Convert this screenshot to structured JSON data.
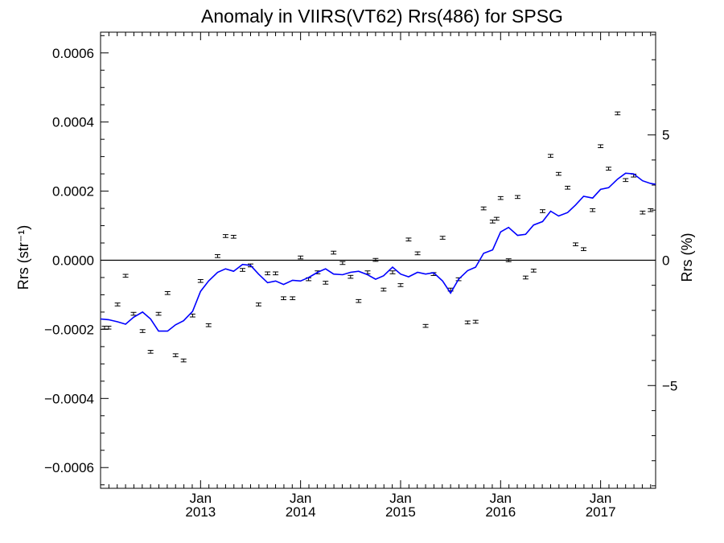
{
  "chart_data": {
    "type": "scatter",
    "title": "Anomaly in VIIRS(VT62) Rrs(486) for SPSG",
    "ylabel_left": "Rrs (str⁻¹)",
    "ylabel_right": "Rrs (%)",
    "xlim": [
      2012.0,
      2017.55
    ],
    "ylim": [
      -0.00066,
      0.00066
    ],
    "ylim_right": [
      -9.1,
      9.1
    ],
    "left_ticks": [
      {
        "value": 0.0006,
        "label": "0.0006"
      },
      {
        "value": 0.0004,
        "label": "0.0004"
      },
      {
        "value": 0.0002,
        "label": "0.0002"
      },
      {
        "value": 0.0,
        "label": "0.0000"
      },
      {
        "value": -0.0002,
        "label": "−0.0002"
      },
      {
        "value": -0.0004,
        "label": "−0.0004"
      },
      {
        "value": -0.0006,
        "label": "−0.0006"
      }
    ],
    "right_ticks": [
      {
        "value": 5,
        "label": "5"
      },
      {
        "value": 0,
        "label": "0"
      },
      {
        "value": -5,
        "label": "−5"
      }
    ],
    "x_ticks": [
      {
        "value": 2013.0,
        "month": "Jan",
        "year": "2013"
      },
      {
        "value": 2014.0,
        "month": "Jan",
        "year": "2014"
      },
      {
        "value": 2015.0,
        "month": "Jan",
        "year": "2015"
      },
      {
        "value": 2016.0,
        "month": "Jan",
        "year": "2016"
      },
      {
        "value": 2017.0,
        "month": "Jan",
        "year": "2017"
      }
    ],
    "zero_line": true,
    "grid": false,
    "series": [
      {
        "kind": "points_with_errorbars",
        "color": "#000000",
        "x": [
          2012.04,
          2012.08,
          2012.17,
          2012.25,
          2012.33,
          2012.42,
          2012.5,
          2012.58,
          2012.67,
          2012.75,
          2012.83,
          2012.92,
          2013.0,
          2013.08,
          2013.17,
          2013.25,
          2013.33,
          2013.42,
          2013.5,
          2013.58,
          2013.67,
          2013.75,
          2013.83,
          2013.92,
          2014.0,
          2014.08,
          2014.17,
          2014.25,
          2014.33,
          2014.42,
          2014.5,
          2014.58,
          2014.67,
          2014.75,
          2014.83,
          2014.92,
          2015.0,
          2015.08,
          2015.17,
          2015.25,
          2015.33,
          2015.42,
          2015.5,
          2015.58,
          2015.67,
          2015.75,
          2015.83,
          2015.92,
          2015.96,
          2016.0,
          2016.08,
          2016.17,
          2016.25,
          2016.33,
          2016.42,
          2016.5,
          2016.58,
          2016.67,
          2016.75,
          2016.83,
          2016.92,
          2017.0,
          2017.08,
          2017.17,
          2017.25,
          2017.33,
          2017.42,
          2017.5
        ],
        "y": [
          -0.000195,
          -0.000195,
          -0.000128,
          -4.5e-05,
          -0.000155,
          -0.000205,
          -0.000265,
          -0.000155,
          -9.5e-05,
          -0.000275,
          -0.00029,
          -0.00016,
          -6e-05,
          -0.000188,
          1.2e-05,
          7e-05,
          6.8e-05,
          -2.8e-05,
          -1.5e-05,
          -0.000128,
          -3.8e-05,
          -3.8e-05,
          -0.00011,
          -0.00011,
          8e-06,
          -5.5e-05,
          -3.5e-05,
          -6.5e-05,
          2.2e-05,
          -8e-06,
          -4.8e-05,
          -0.000118,
          -3.5e-05,
          1e-06,
          -8.5e-05,
          -3.5e-05,
          -7.2e-05,
          6e-05,
          2e-05,
          -0.00019,
          -4e-05,
          6.5e-05,
          -8.5e-05,
          -5.5e-05,
          -0.00018,
          -0.000178,
          0.00015,
          0.000112,
          0.00012,
          0.00018,
          0.0,
          0.000183,
          -5e-05,
          -3e-05,
          0.000142,
          0.000302,
          0.00025,
          0.00021,
          4.6e-05,
          3.2e-05,
          0.000145,
          0.00033,
          0.000265,
          0.000425,
          0.000232,
          0.000245,
          0.000138,
          0.000145
        ]
      },
      {
        "kind": "line",
        "color": "#0000ff",
        "x": [
          2012.0,
          2012.08,
          2012.17,
          2012.25,
          2012.33,
          2012.42,
          2012.5,
          2012.58,
          2012.67,
          2012.75,
          2012.83,
          2012.92,
          2013.0,
          2013.08,
          2013.17,
          2013.25,
          2013.33,
          2013.42,
          2013.5,
          2013.58,
          2013.67,
          2013.75,
          2013.83,
          2013.92,
          2014.0,
          2014.08,
          2014.17,
          2014.25,
          2014.33,
          2014.42,
          2014.5,
          2014.58,
          2014.67,
          2014.75,
          2014.83,
          2014.92,
          2015.0,
          2015.08,
          2015.17,
          2015.25,
          2015.33,
          2015.42,
          2015.5,
          2015.58,
          2015.67,
          2015.75,
          2015.83,
          2015.92,
          2016.0,
          2016.08,
          2016.17,
          2016.25,
          2016.33,
          2016.42,
          2016.5,
          2016.58,
          2016.67,
          2016.75,
          2016.83,
          2016.92,
          2017.0,
          2017.08,
          2017.17,
          2017.25,
          2017.33,
          2017.42,
          2017.5,
          2017.55
        ],
        "y": [
          -0.00017,
          -0.000172,
          -0.000178,
          -0.000185,
          -0.000165,
          -0.00015,
          -0.00017,
          -0.000205,
          -0.000205,
          -0.000187,
          -0.000175,
          -0.000148,
          -9e-05,
          -6e-05,
          -3.5e-05,
          -2.5e-05,
          -3.2e-05,
          -1.2e-05,
          -1.5e-05,
          -4e-05,
          -6.5e-05,
          -6e-05,
          -7e-05,
          -5.8e-05,
          -6e-05,
          -5e-05,
          -3.5e-05,
          -2.5e-05,
          -4e-05,
          -4.2e-05,
          -3.5e-05,
          -3.2e-05,
          -4.2e-05,
          -5.5e-05,
          -4.5e-05,
          -2e-05,
          -4e-05,
          -4.8e-05,
          -3.5e-05,
          -4e-05,
          -3.6e-05,
          -6e-05,
          -9.5e-05,
          -5.5e-05,
          -3e-05,
          -2e-05,
          2e-05,
          3e-05,
          8.2e-05,
          9.5e-05,
          7.2e-05,
          7.5e-05,
          0.000102,
          0.000112,
          0.000142,
          0.000128,
          0.000138,
          0.00016,
          0.000185,
          0.00018,
          0.000205,
          0.00021,
          0.000235,
          0.000252,
          0.00025,
          0.00023,
          0.000222,
          0.00022
        ]
      }
    ]
  }
}
